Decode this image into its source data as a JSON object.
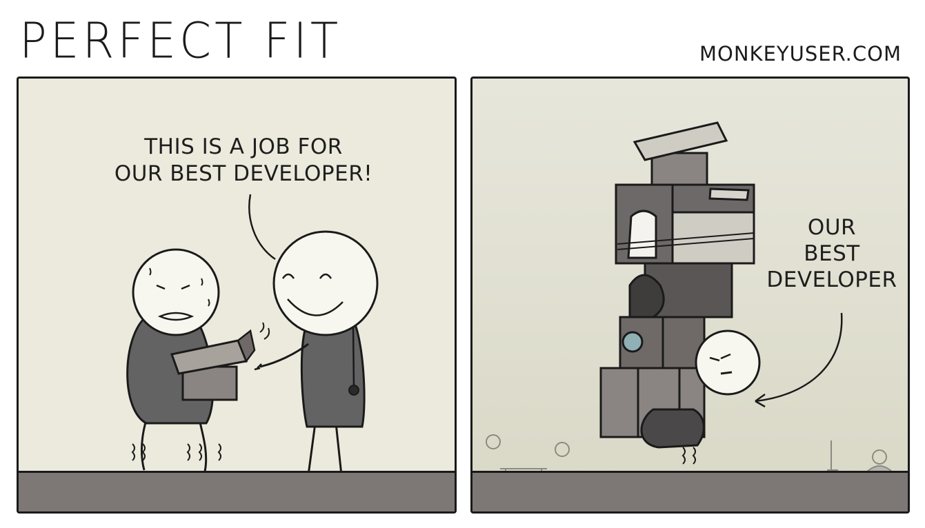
{
  "comic": {
    "title": "PERFECT FIT",
    "site": "MONKEYUSER.COM"
  },
  "panel1": {
    "speech_line1": "THIS IS A JOB FOR",
    "speech_line2": "OUR BEST DEVELOPER!"
  },
  "panel2": {
    "label_line1": "OUR",
    "label_line2": "BEST",
    "label_line3": "DEVELOPER"
  },
  "colors": {
    "panel_bg": "#eceadd",
    "floor": "#7d7776",
    "shirt": "#636363",
    "box": "#8a8583",
    "outline": "#1a1a1a"
  }
}
